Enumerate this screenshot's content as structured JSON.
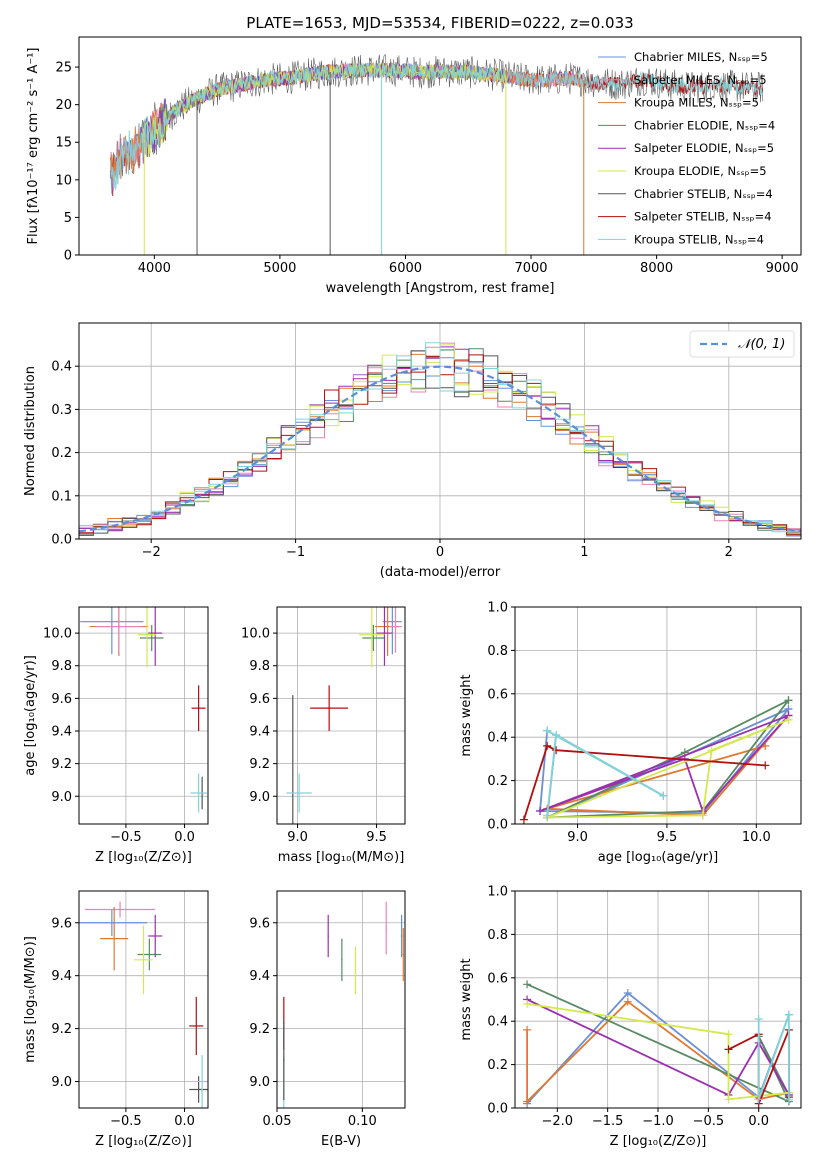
{
  "colors": {
    "chabrier_miles": "#6a8fd8",
    "salpeter_miles": "#e884b8",
    "kroupa_miles": "#e07830",
    "chabrier_elodie": "#5a8a64",
    "salpeter_elodie": "#9a30b0",
    "kroupa_elodie": "#d4e850",
    "chabrier_stelib": "#555555",
    "salpeter_stelib": "#b01010",
    "kroupa_stelib": "#80d4d8",
    "gaussian": "#5a8fd8",
    "grid": "#b0b0b0"
  },
  "chart_data": [
    {
      "id": "spectrum",
      "type": "line",
      "title": "PLATE=1653, MJD=53534, FIBERID=0222, z=0.033",
      "xlabel": "wavelength [Angstrom, rest frame]",
      "ylabel": "Flux [fλ10⁻¹⁷ erg cm⁻² s⁻¹ A⁻¹]",
      "xlim": [
        3400,
        9150
      ],
      "ylim": [
        0,
        29
      ],
      "xticks": [
        4000,
        5000,
        6000,
        7000,
        8000,
        9000
      ],
      "yticks": [
        0,
        5,
        10,
        15,
        20,
        25
      ],
      "grid": false,
      "legend_position": "upper-right",
      "legend": [
        {
          "label": "Chabrier MILES, Nₛₛₚ=5",
          "color_key": "chabrier_miles"
        },
        {
          "label": "Salpeter MILES, Nₛₛₚ=5",
          "color_key": "salpeter_miles"
        },
        {
          "label": "Kroupa MILES, Nₛₛₚ=5",
          "color_key": "kroupa_miles"
        },
        {
          "label": "Chabrier ELODIE, Nₛₛₚ=4",
          "color_key": "chabrier_elodie"
        },
        {
          "label": "Salpeter ELODIE, Nₛₛₚ=5",
          "color_key": "salpeter_elodie"
        },
        {
          "label": "Kroupa ELODIE, Nₛₛₚ=5",
          "color_key": "kroupa_elodie"
        },
        {
          "label": "Chabrier STELIB, Nₛₛₚ=4",
          "color_key": "chabrier_stelib"
        },
        {
          "label": "Salpeter STELIB, Nₛₛₚ=4",
          "color_key": "salpeter_stelib"
        },
        {
          "label": "Kroupa STELIB, Nₛₛₚ=4",
          "color_key": "kroupa_stelib"
        }
      ],
      "continuum": [
        [
          3650,
          10.5
        ],
        [
          3750,
          13
        ],
        [
          3850,
          14
        ],
        [
          3950,
          16
        ],
        [
          4050,
          17
        ],
        [
          4150,
          19
        ],
        [
          4300,
          20.5
        ],
        [
          4500,
          22
        ],
        [
          4700,
          22.7
        ],
        [
          4900,
          23.3
        ],
        [
          5100,
          23.6
        ],
        [
          5300,
          24.2
        ],
        [
          5500,
          24.5
        ],
        [
          5700,
          24.6
        ],
        [
          5900,
          24.6
        ],
        [
          6100,
          24.3
        ],
        [
          6300,
          24.4
        ],
        [
          6500,
          24.3
        ],
        [
          6700,
          24
        ],
        [
          6900,
          23.5
        ],
        [
          7100,
          23.2
        ],
        [
          7300,
          23.5
        ],
        [
          7500,
          23.1
        ],
        [
          7700,
          22.7
        ],
        [
          7900,
          23.4
        ],
        [
          8100,
          22.6
        ],
        [
          8300,
          22.3
        ],
        [
          8500,
          22.6
        ],
        [
          8700,
          22.3
        ],
        [
          8850,
          22.2
        ]
      ],
      "model_ranges": [
        {
          "color_key": "chabrier_miles",
          "x": [
            3650,
            7420
          ]
        },
        {
          "color_key": "salpeter_miles",
          "x": [
            3650,
            7420
          ]
        },
        {
          "color_key": "kroupa_miles",
          "x": [
            3650,
            7420
          ]
        },
        {
          "color_key": "chabrier_elodie",
          "x": [
            3900,
            6800
          ]
        },
        {
          "color_key": "salpeter_elodie",
          "x": [
            3900,
            6800
          ]
        },
        {
          "color_key": "kroupa_elodie",
          "x": [
            3900,
            6800
          ]
        },
        {
          "color_key": "chabrier_stelib",
          "x": [
            3650,
            8850
          ]
        },
        {
          "color_key": "salpeter_stelib",
          "x": [
            3650,
            8850
          ]
        },
        {
          "color_key": "kroupa_stelib",
          "x": [
            3650,
            8850
          ]
        }
      ],
      "sharp_drops": [
        {
          "x": 3920,
          "color_key": "kroupa_elodie"
        },
        {
          "x": 4340,
          "color_key": "chabrier_stelib"
        },
        {
          "x": 5400,
          "color_key": "chabrier_stelib"
        },
        {
          "x": 5810,
          "color_key": "kroupa_stelib"
        },
        {
          "x": 6800,
          "color_key": "kroupa_elodie"
        },
        {
          "x": 7420,
          "color_key": "kroupa_miles"
        }
      ]
    },
    {
      "id": "residuals",
      "type": "histogram",
      "xlabel": "(data-model)/error",
      "ylabel": "Normed distribution",
      "xlim": [
        -2.5,
        2.5
      ],
      "ylim": [
        0,
        0.5
      ],
      "xticks": [
        -2,
        -1,
        0,
        1,
        2
      ],
      "yticks": [
        0.0,
        0.1,
        0.2,
        0.3,
        0.4
      ],
      "grid": true,
      "legend_position": "upper-right",
      "legend": [
        {
          "label": "𝒩(0, 1)",
          "color_key": "gaussian"
        }
      ],
      "bin_width": 0.1,
      "series_colors": [
        "chabrier_miles",
        "salpeter_miles",
        "kroupa_miles",
        "chabrier_elodie",
        "salpeter_elodie",
        "kroupa_elodie",
        "chabrier_stelib",
        "salpeter_stelib",
        "kroupa_stelib"
      ]
    },
    {
      "id": "age_vs_Z",
      "type": "scatter",
      "xlabel": "Z [log₁₀(Z/Z⊙)]",
      "ylabel": "age  [log₁₀(age/yr)]",
      "xlim": [
        -0.9,
        0.2
      ],
      "ylim": [
        8.83,
        10.16
      ],
      "xticks": [
        -0.5,
        0.0
      ],
      "yticks": [
        9.0,
        9.2,
        9.4,
        9.6,
        9.8,
        10.0
      ],
      "grid": true,
      "points": [
        {
          "x": -0.62,
          "y": 10.07,
          "xerr": 0.27,
          "yerr": 0.2,
          "color_key": "chabrier_miles"
        },
        {
          "x": -0.56,
          "y": 10.04,
          "xerr": 0.25,
          "yerr": 0.18,
          "color_key": "kroupa_miles"
        },
        {
          "x": -0.56,
          "y": 10.04,
          "xerr": 0.2,
          "yerr": 0.16,
          "color_key": "salpeter_miles"
        },
        {
          "x": -0.28,
          "y": 9.97,
          "xerr": 0.1,
          "yerr": 0.08,
          "color_key": "chabrier_elodie"
        },
        {
          "x": -0.25,
          "y": 10.0,
          "xerr": 0.06,
          "yerr": 0.2,
          "color_key": "salpeter_elodie"
        },
        {
          "x": -0.32,
          "y": 9.99,
          "xerr": 0.08,
          "yerr": 0.2,
          "color_key": "kroupa_elodie"
        },
        {
          "x": 0.15,
          "y": 9.02,
          "xerr": 0.0,
          "yerr": 0.1,
          "color_key": "chabrier_stelib"
        },
        {
          "x": 0.12,
          "y": 9.54,
          "xerr": 0.06,
          "yerr": 0.14,
          "color_key": "salpeter_stelib"
        },
        {
          "x": 0.12,
          "y": 9.02,
          "xerr": 0.07,
          "yerr": 0.12,
          "color_key": "kroupa_stelib"
        }
      ]
    },
    {
      "id": "age_vs_mass",
      "type": "scatter",
      "xlabel": "mass [log₁₀(M/M⊙)]",
      "ylabel": "",
      "xlim": [
        8.87,
        9.68
      ],
      "ylim": [
        8.83,
        10.16
      ],
      "xticks": [
        9.0,
        9.5
      ],
      "yticks": [
        9.0,
        9.2,
        9.4,
        9.6,
        9.8,
        10.0
      ],
      "grid": true,
      "points": [
        {
          "x": 9.6,
          "y": 10.07,
          "xerr": 0.06,
          "yerr": 0.2,
          "color_key": "chabrier_miles"
        },
        {
          "x": 9.57,
          "y": 10.04,
          "xerr": 0.08,
          "yerr": 0.18,
          "color_key": "kroupa_miles"
        },
        {
          "x": 9.62,
          "y": 10.04,
          "xerr": 0.04,
          "yerr": 0.16,
          "color_key": "salpeter_miles"
        },
        {
          "x": 9.48,
          "y": 9.97,
          "xerr": 0.07,
          "yerr": 0.08,
          "color_key": "chabrier_elodie"
        },
        {
          "x": 9.55,
          "y": 10.0,
          "xerr": 0.05,
          "yerr": 0.2,
          "color_key": "salpeter_elodie"
        },
        {
          "x": 9.47,
          "y": 9.99,
          "xerr": 0.08,
          "yerr": 0.2,
          "color_key": "kroupa_elodie"
        },
        {
          "x": 8.97,
          "y": 9.02,
          "xerr": 0.0,
          "yerr": 0.6,
          "color_key": "chabrier_stelib"
        },
        {
          "x": 9.2,
          "y": 9.54,
          "xerr": 0.12,
          "yerr": 0.14,
          "color_key": "salpeter_stelib"
        },
        {
          "x": 9.01,
          "y": 9.02,
          "xerr": 0.08,
          "yerr": 0.12,
          "color_key": "kroupa_stelib"
        }
      ]
    },
    {
      "id": "weight_vs_age",
      "type": "line",
      "xlabel": "age  [log₁₀(age/yr)]",
      "ylabel": "mass weight",
      "xlim": [
        8.65,
        10.25
      ],
      "ylim": [
        0,
        1.0
      ],
      "xticks": [
        9.0,
        9.5,
        10.0
      ],
      "yticks": [
        0.0,
        0.2,
        0.4,
        0.6,
        0.8,
        1.0
      ],
      "grid": true,
      "series": [
        {
          "color_key": "chabrier_miles",
          "x": [
            10.18,
            9.7,
            8.79,
            8.83,
            9.48,
            8.88,
            8.83,
            10.18
          ],
          "y": [
            0.53,
            0.05,
            0.06,
            0.43,
            0.13,
            0.41,
            0.03,
            0.53
          ]
        },
        {
          "color_key": "kroupa_miles",
          "x": [
            10.18,
            9.7,
            8.83,
            10.05
          ],
          "y": [
            0.5,
            0.04,
            0.07,
            0.36
          ]
        },
        {
          "color_key": "chabrier_elodie",
          "x": [
            10.18,
            9.6,
            8.83,
            9.7,
            10.18
          ],
          "y": [
            0.57,
            0.33,
            0.03,
            0.06,
            0.57
          ]
        },
        {
          "color_key": "salpeter_elodie",
          "x": [
            10.18,
            9.7,
            9.6,
            8.79,
            10.18
          ],
          "y": [
            0.5,
            0.06,
            0.3,
            0.06,
            0.5
          ]
        },
        {
          "color_key": "kroupa_elodie",
          "x": [
            10.18,
            9.75,
            9.7,
            8.83,
            10.18
          ],
          "y": [
            0.48,
            0.34,
            0.04,
            0.03,
            0.48
          ]
        },
        {
          "color_key": "salpeter_stelib",
          "x": [
            8.7,
            8.83,
            8.88,
            10.05
          ],
          "y": [
            0.02,
            0.36,
            0.34,
            0.27
          ]
        },
        {
          "color_key": "kroupa_stelib",
          "x": [
            8.83,
            9.48,
            8.88,
            8.83
          ],
          "y": [
            0.43,
            0.13,
            0.41,
            0.04
          ]
        }
      ]
    },
    {
      "id": "mass_vs_Z",
      "type": "scatter",
      "xlabel": "Z [log₁₀(Z/Z⊙)]",
      "ylabel": "mass [log₁₀(M/M⊙)]",
      "xlim": [
        -0.9,
        0.2
      ],
      "ylim": [
        8.9,
        9.72
      ],
      "xticks": [
        -0.5,
        0.0
      ],
      "yticks": [
        9.0,
        9.2,
        9.4,
        9.6
      ],
      "grid": true,
      "points": [
        {
          "x": -0.62,
          "y": 9.6,
          "xerr": 0.3,
          "yerr": 0.05,
          "color_key": "chabrier_miles"
        },
        {
          "x": -0.55,
          "y": 9.65,
          "xerr": 0.3,
          "yerr": 0.03,
          "color_key": "salpeter_miles"
        },
        {
          "x": -0.6,
          "y": 9.54,
          "xerr": 0.12,
          "yerr": 0.12,
          "color_key": "kroupa_miles"
        },
        {
          "x": -0.3,
          "y": 9.48,
          "xerr": 0.1,
          "yerr": 0.06,
          "color_key": "chabrier_elodie"
        },
        {
          "x": -0.25,
          "y": 9.55,
          "xerr": 0.06,
          "yerr": 0.08,
          "color_key": "salpeter_elodie"
        },
        {
          "x": -0.35,
          "y": 9.46,
          "xerr": 0.08,
          "yerr": 0.13,
          "color_key": "kroupa_elodie"
        },
        {
          "x": 0.12,
          "y": 8.97,
          "xerr": 0.08,
          "yerr": 0.05,
          "color_key": "chabrier_stelib"
        },
        {
          "x": 0.1,
          "y": 9.21,
          "xerr": 0.06,
          "yerr": 0.11,
          "color_key": "salpeter_stelib"
        },
        {
          "x": 0.15,
          "y": 9.0,
          "xerr": 0.05,
          "yerr": 0.1,
          "color_key": "kroupa_stelib"
        }
      ]
    },
    {
      "id": "mass_vs_ebv",
      "type": "scatter",
      "xlabel": "E(B-V)",
      "ylabel": "",
      "xlim": [
        0.05,
        0.125
      ],
      "ylim": [
        8.9,
        9.72
      ],
      "xticks": [
        0.05,
        0.1
      ],
      "yticks": [
        9.0,
        9.2,
        9.4,
        9.6
      ],
      "grid": true,
      "points": [
        {
          "x": 0.054,
          "y": 9.0,
          "xerr": 0,
          "yerr": 0.1,
          "color_key": "kroupa_stelib"
        },
        {
          "x": 0.054,
          "y": 9.22,
          "xerr": 0,
          "yerr": 0.1,
          "color_key": "salpeter_stelib"
        },
        {
          "x": 0.054,
          "y": 9.08,
          "xerr": 0,
          "yerr": 0.15,
          "color_key": "chabrier_stelib"
        },
        {
          "x": 0.08,
          "y": 9.55,
          "xerr": 0,
          "yerr": 0.08,
          "color_key": "salpeter_elodie"
        },
        {
          "x": 0.088,
          "y": 9.46,
          "xerr": 0,
          "yerr": 0.08,
          "color_key": "chabrier_elodie"
        },
        {
          "x": 0.096,
          "y": 9.42,
          "xerr": 0,
          "yerr": 0.09,
          "color_key": "kroupa_elodie"
        },
        {
          "x": 0.114,
          "y": 9.58,
          "xerr": 0,
          "yerr": 0.1,
          "color_key": "salpeter_miles"
        },
        {
          "x": 0.123,
          "y": 9.55,
          "xerr": 0,
          "yerr": 0.08,
          "color_key": "chabrier_miles"
        },
        {
          "x": 0.124,
          "y": 9.48,
          "xerr": 0,
          "yerr": 0.1,
          "color_key": "kroupa_miles"
        }
      ]
    },
    {
      "id": "weight_vs_Z",
      "type": "line",
      "xlabel": "Z [log₁₀(Z/Z⊙)]",
      "ylabel": "mass weight",
      "xlim": [
        -2.42,
        0.42
      ],
      "ylim": [
        0,
        1.0
      ],
      "xticks": [
        -2.0,
        -1.5,
        -1.0,
        -0.5,
        0.0
      ],
      "yticks": [
        0.0,
        0.2,
        0.4,
        0.6,
        0.8,
        1.0
      ],
      "grid": true,
      "series": [
        {
          "color_key": "chabrier_miles",
          "x": [
            -2.3,
            -1.3,
            0.0,
            0.3
          ],
          "y": [
            0.02,
            0.53,
            0.05,
            0.43
          ]
        },
        {
          "color_key": "kroupa_miles",
          "x": [
            -2.3,
            -2.3,
            -1.3,
            0.0,
            0.3
          ],
          "y": [
            0.36,
            0.03,
            0.49,
            0.04,
            0.07
          ]
        },
        {
          "color_key": "chabrier_elodie",
          "x": [
            -2.3,
            0.3,
            0.0,
            0.3
          ],
          "y": [
            0.57,
            0.03,
            0.33,
            0.06
          ]
        },
        {
          "color_key": "salpeter_elodie",
          "x": [
            -2.3,
            -0.3,
            0.0,
            0.3
          ],
          "y": [
            0.5,
            0.06,
            0.3,
            0.06
          ]
        },
        {
          "color_key": "kroupa_elodie",
          "x": [
            -2.3,
            -0.3,
            -0.3,
            0.3
          ],
          "y": [
            0.48,
            0.34,
            0.04,
            0.07
          ]
        },
        {
          "color_key": "salpeter_stelib",
          "x": [
            -0.3,
            0.0,
            0.0,
            0.3,
            0.3
          ],
          "y": [
            0.27,
            0.34,
            0.02,
            0.36,
            0.05
          ]
        },
        {
          "color_key": "kroupa_stelib",
          "x": [
            0.0,
            0.0,
            0.3,
            0.3
          ],
          "y": [
            0.41,
            0.04,
            0.43,
            0.04
          ]
        }
      ]
    }
  ]
}
